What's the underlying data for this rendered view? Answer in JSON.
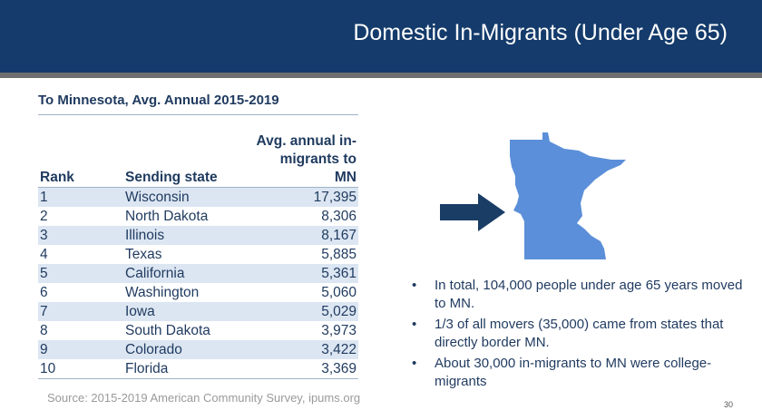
{
  "header": {
    "title": "Domestic In-Migrants (Under Age 65)"
  },
  "table": {
    "title": "To Minnesota, Avg. Annual 2015-2019",
    "columns": {
      "rank": "Rank",
      "state": "Sending state",
      "value_line1": "Avg. annual in-",
      "value_line2": "migrants to MN"
    },
    "rows": [
      {
        "rank": "1",
        "state": "Wisconsin",
        "value": "17,395"
      },
      {
        "rank": "2",
        "state": "North Dakota",
        "value": "8,306"
      },
      {
        "rank": "3",
        "state": "Illinois",
        "value": "8,167"
      },
      {
        "rank": "4",
        "state": "Texas",
        "value": "5,885"
      },
      {
        "rank": "5",
        "state": "California",
        "value": "5,361"
      },
      {
        "rank": "6",
        "state": "Washington",
        "value": "5,060"
      },
      {
        "rank": "7",
        "state": "Iowa",
        "value": "5,029"
      },
      {
        "rank": "8",
        "state": "South Dakota",
        "value": "3,973"
      },
      {
        "rank": "9",
        "state": "Colorado",
        "value": "3,422"
      },
      {
        "rank": "10",
        "state": "Florida",
        "value": "3,369"
      }
    ]
  },
  "source": "Source: 2015-2019 American Community Survey, ipums.org",
  "bullets": [
    "In total, 104,000 people under age 65 years moved to MN.",
    "1/3 of all movers (35,000) came from states that directly border MN.",
    "About 30,000 in-migrants to MN were college-migrants"
  ],
  "bullet_glyph": "•",
  "page_number": "30",
  "colors": {
    "header_bg": "#143b6b",
    "stripe": "#6e6e6e",
    "row_band": "#dce6f2",
    "text": "#1f3a5f",
    "map_fill": "#5b8fd9",
    "arrow_fill": "#1a3d66"
  },
  "icons": {
    "map": "minnesota-map-icon",
    "arrow": "right-arrow-icon"
  }
}
